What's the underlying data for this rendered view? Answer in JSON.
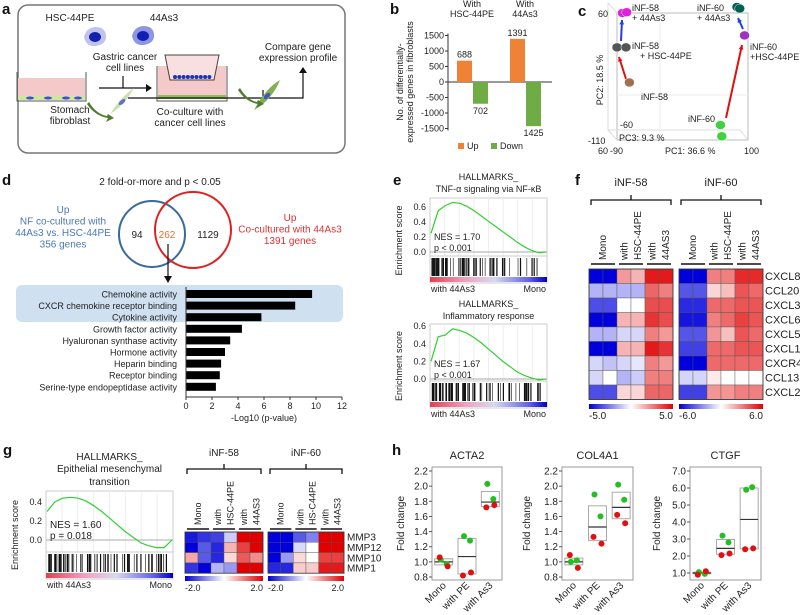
{
  "panel_labels": {
    "a": "a",
    "b": "b",
    "c": "c",
    "d": "d",
    "e": "e",
    "f": "f",
    "g": "g",
    "h": "h"
  },
  "panel_a": {
    "cell1": "HSC-44PE",
    "cell2": "44As3",
    "gastric_line1": "Gastric cancer",
    "gastric_line2": "cell lines",
    "stomach_line1": "Stomach",
    "stomach_line2": "fibroblast",
    "coculture_line1": "Co-culture with",
    "coculture_line2": "cancer cell lines",
    "compare_line1": "Compare gene",
    "compare_line2": "expression profile",
    "colors": {
      "medium": "#f4c9c9",
      "fibroblast": "#8fbf5a",
      "cancer": "#2030c0",
      "arrow": "#4f7d2a"
    }
  },
  "chart_data": [
    {
      "id": "b",
      "type": "bar",
      "groups": [
        [
          "With",
          "HSC-44PE"
        ],
        [
          "With",
          "44As3"
        ]
      ],
      "series": [
        {
          "name": "Up",
          "color": "#ee8236",
          "values": [
            688,
            1391
          ]
        },
        {
          "name": "Down",
          "color": "#6fac46",
          "values": [
            -702,
            -1425
          ]
        }
      ],
      "data_labels": [
        [
          "688",
          "702"
        ],
        [
          "1391",
          "1425"
        ]
      ],
      "ylabel_line1": "No. of differentially-",
      "ylabel_line2": "expressed genes in fibroblasts",
      "ylim": [
        -1500,
        1500
      ],
      "yticks": [
        "1500",
        "1000",
        "500",
        "0",
        "-500",
        "-1000",
        "-1500"
      ],
      "legend": [
        "Up",
        "Down"
      ],
      "legend_position": "bottom"
    },
    {
      "id": "c",
      "type": "scatter",
      "xlabel": "PC1: 36.6 %",
      "ylabel": "PC2: 18.5 %",
      "zlabel": "PC3: 9.3 %",
      "tick_labels": {
        "y_top": "60",
        "z_back": "-60",
        "y_bottom": "-110",
        "z_front": "60",
        "x_left": "-90",
        "x_right": "100"
      },
      "points": [
        {
          "group": "iNF-58 + 44As3",
          "pc1": -82,
          "pc2": 60,
          "color": "#e020e0"
        },
        {
          "group": "iNF-58 + 44As3",
          "pc1": -76,
          "pc2": 61,
          "color": "#e020e0"
        },
        {
          "group": "iNF-58 + HSC-44PE",
          "pc1": -90,
          "pc2": 14,
          "color": "#555555"
        },
        {
          "group": "iNF-58 + HSC-44PE",
          "pc1": -77,
          "pc2": 14,
          "color": "#555555"
        },
        {
          "group": "iNF-58",
          "pc1": -72,
          "pc2": -33,
          "color": "#a07050"
        },
        {
          "group": "iNF-60",
          "pc1": 60,
          "pc2": -90,
          "color": "#40d040"
        },
        {
          "group": "iNF-60",
          "pc1": 62,
          "pc2": -105,
          "color": "#40d040"
        },
        {
          "group": "iNF-60 +HSC-44PE",
          "pc1": 95,
          "pc2": 30,
          "color": "#a030c0"
        },
        {
          "group": "iNF-60 + 44As3",
          "pc1": 84,
          "pc2": 68,
          "color": "#006050"
        },
        {
          "group": "iNF-60 + 44As3",
          "pc1": 88,
          "pc2": 66,
          "color": "#006050"
        }
      ],
      "labels": {
        "g58as_1": "iNF-58",
        "g58as_2": "+ 44As3",
        "g58pe_1": "iNF-58",
        "g58pe_2": "+ HSC-44PE",
        "g58": "iNF-58",
        "g60as_1": "iNF-60",
        "g60as_2": "+ 44As3",
        "g60pe_1": "iNF-60",
        "g60pe_2": "+HSC-44PE",
        "g60": "iNF-60"
      }
    },
    {
      "id": "d",
      "type": "bar",
      "orientation": "horizontal",
      "title": "-Log10 (p-value)",
      "categories": [
        "Chemokine activity",
        "CXCR chemokine receptor binding",
        "Cytokine activity",
        "Growth factor activity",
        "Hyaluronan synthase activity",
        "Hormone activity",
        "Heparin binding",
        "Receptor binding",
        "Serine-type endopeptidase activity"
      ],
      "values": [
        9.7,
        8.4,
        5.8,
        4.3,
        3.4,
        3.0,
        2.7,
        2.6,
        2.3
      ],
      "highlighted": [
        0,
        1,
        2
      ],
      "xlim": [
        0,
        12
      ],
      "xticks": [
        "0",
        "2",
        "4",
        "6",
        "8",
        "10",
        "12"
      ],
      "xlabel": "-Log10 (p-value)"
    },
    {
      "id": "e1",
      "type": "line",
      "title_line1": "HALLMARKS_",
      "title_line2": "TNF-α signaling via NF-κB",
      "nes": "NES = 1.70",
      "p": "p < 0.001",
      "ylabel": "Enrichment score",
      "yticks": [
        "0.6",
        "0.4",
        "0.2",
        "0.0"
      ],
      "left_label": "with 44As3",
      "right_label": "Mono",
      "es_curve": [
        0.25,
        0.55,
        0.62,
        0.66,
        0.65,
        0.61,
        0.55,
        0.48,
        0.41,
        0.34,
        0.27,
        0.2,
        0.13,
        0.07,
        0.02,
        -0.01,
        0.0
      ]
    },
    {
      "id": "e2",
      "type": "line",
      "title_line1": "HALLMARKS_",
      "title_line2": "Inflammatory response",
      "nes": "NES = 1.67",
      "p": "p < 0.001",
      "ylabel": "Enrichment score",
      "yticks": [
        "0.6",
        "0.4",
        "0.2",
        "0.0"
      ],
      "left_label": "with 44As3",
      "right_label": "Mono",
      "es_curve": [
        0.2,
        0.48,
        0.5,
        0.57,
        0.55,
        0.52,
        0.47,
        0.41,
        0.34,
        0.27,
        0.2,
        0.14,
        0.08,
        0.04,
        0.01,
        -0.01,
        0.0
      ]
    },
    {
      "id": "f",
      "type": "heatmap",
      "groups": [
        {
          "name": "iNF-58",
          "scale_min": "-5.0",
          "scale_max": "5.0",
          "max": 5,
          "values": [
            [
              -5,
              -5,
              2,
              1.5,
              4.5,
              4.5
            ],
            [
              -1.5,
              -1.5,
              -1.5,
              -1.5,
              3,
              2.5
            ],
            [
              -3.5,
              -3.5,
              0,
              0,
              3.5,
              3.5
            ],
            [
              -5,
              -5,
              1.5,
              1.5,
              4,
              3.5
            ],
            [
              -1.5,
              -1.5,
              -0.8,
              -0.8,
              2.5,
              2
            ],
            [
              -5,
              -5,
              1.5,
              1.5,
              4.5,
              4
            ],
            [
              -0.8,
              -1.2,
              -0.8,
              -0.5,
              2.5,
              2
            ],
            [
              -0.8,
              0,
              -1.5,
              -1,
              2.5,
              2.5
            ],
            [
              -3.5,
              -3.5,
              0.8,
              0.8,
              3,
              3
            ]
          ]
        },
        {
          "name": "iNF-60",
          "scale_min": "-6.0",
          "scale_max": "6.0",
          "max": 6,
          "values": [
            [
              -6,
              -6,
              3,
              3,
              5,
              5
            ],
            [
              -4,
              -4,
              1,
              1.5,
              4,
              3.5
            ],
            [
              -5,
              -5,
              3.5,
              3.5,
              4,
              4
            ],
            [
              -5.5,
              -5.5,
              3,
              3.5,
              4.5,
              4
            ],
            [
              -4,
              -4,
              2.5,
              1.5,
              4,
              3.5
            ],
            [
              -4.5,
              -4.5,
              3.5,
              3.5,
              4,
              4
            ],
            [
              -6,
              -6,
              3.5,
              3.5,
              3.5,
              3.5
            ],
            [
              -1,
              -1,
              0.5,
              0,
              0,
              0
            ],
            [
              -4.5,
              -4.5,
              2.5,
              2.5,
              3,
              3
            ]
          ]
        }
      ],
      "conditions": [
        [
          "Mono"
        ],
        [
          "with",
          "HSC-44PE"
        ],
        [
          "with",
          "44AS3"
        ]
      ],
      "rows": [
        "CXCL8",
        "CCL20",
        "CXCL3",
        "CXCL6",
        "CXCL5",
        "CXCL1",
        "CXCR4",
        "CCL13",
        "CXCL2"
      ]
    },
    {
      "id": "g1",
      "type": "line",
      "title_line1": "HALLMARKS_",
      "title_line2": "Epithelial mesenchymal",
      "title_line3": "transition",
      "nes": "NES = 1.60",
      "p": "p = 0.018",
      "ylabel": "Enrichment score",
      "yticks": [
        "0.4",
        "0.2",
        "0.0"
      ],
      "left_label": "with 44As3",
      "right_label": "Mono",
      "es_curve": [
        0.3,
        0.4,
        0.44,
        0.45,
        0.44,
        0.41,
        0.36,
        0.3,
        0.23,
        0.16,
        0.09,
        0.03,
        -0.03,
        -0.06,
        -0.08,
        -0.08,
        0.0
      ]
    },
    {
      "id": "g2",
      "type": "heatmap",
      "groups": [
        {
          "name": "iNF-58",
          "scale_min": "-2.0",
          "scale_max": "2.0",
          "max": 2,
          "conditions": [
            [
              "Mono"
            ],
            [
              "with",
              "HSC-44PE"
            ],
            [
              "with",
              "44AS3"
            ]
          ],
          "values": [
            [
              -1.8,
              -1.6,
              -1.5,
              -0.4,
              2,
              2
            ],
            [
              -2,
              -1.3,
              -1.7,
              0.6,
              1.5,
              2
            ],
            [
              0.7,
              -1.3,
              -1.7,
              0.3,
              1.3,
              0.9
            ],
            [
              -1.6,
              -2,
              -0.6,
              -0.8,
              2,
              2
            ]
          ]
        },
        {
          "name": "iNF-60",
          "scale_min": "-2.0",
          "scale_max": "2.0",
          "max": 2,
          "conditions": [
            [
              "Mono"
            ],
            [
              "with",
              "HS-C44PE"
            ],
            [
              "with",
              "44AS3"
            ]
          ],
          "values": [
            [
              -2,
              -2,
              -1.3,
              -1,
              2,
              2
            ],
            [
              -2,
              -2,
              -0.3,
              0,
              2,
              2
            ],
            [
              -2,
              -0.8,
              0.3,
              0,
              1.5,
              1.5
            ],
            [
              -1.7,
              -1.7,
              0.4,
              0.4,
              1.8,
              1.8
            ]
          ]
        }
      ],
      "rows": [
        "MMP3",
        "MMP12",
        "MMP10",
        "MMP1"
      ]
    },
    {
      "id": "h",
      "type": "box",
      "categories": [
        "Mono",
        "with PE",
        "with As3"
      ],
      "ylabel": "Fold change",
      "plots": [
        {
          "title": "ACTA2",
          "ylim": [
            0.8,
            2.2
          ],
          "yticks": [
            "2.2",
            "2.0",
            "1.8",
            "1.6",
            "1.4",
            "1.2",
            "1.0",
            "0.8"
          ],
          "boxes": [
            [
              0.96,
              1.0,
              1.04
            ],
            [
              0.84,
              1.07,
              1.31
            ],
            [
              1.73,
              1.79,
              1.93
            ]
          ],
          "green": [
            [
              1.03,
              0.97
            ],
            [
              1.34,
              1.28
            ],
            [
              2.03,
              1.83
            ]
          ],
          "red": [
            [
              1.06,
              0.94
            ],
            [
              0.82,
              0.86
            ],
            [
              1.72,
              1.75
            ]
          ]
        },
        {
          "title": "COL4A1",
          "ylim": [
            0.8,
            2.2
          ],
          "yticks": [
            "2.2",
            "2.0",
            "1.8",
            "1.6",
            "1.4",
            "1.2",
            "1.0",
            "0.8"
          ],
          "boxes": [
            [
              0.96,
              1.0,
              1.05
            ],
            [
              1.28,
              1.46,
              1.74
            ],
            [
              1.57,
              1.72,
              1.92
            ]
          ],
          "green": [
            [
              1.0,
              1.02
            ],
            [
              1.89,
              1.6
            ],
            [
              2.02,
              1.82
            ]
          ],
          "red": [
            [
              1.09,
              0.92
            ],
            [
              1.33,
              1.24
            ],
            [
              1.62,
              1.51
            ]
          ]
        },
        {
          "title": "CTGF",
          "ylim": [
            0.8,
            7.0
          ],
          "yticks": [
            "7.0",
            "6.0",
            "5.0",
            "4.0",
            "3.0",
            "2.0",
            "1.0"
          ],
          "boxes": [
            [
              0.95,
              1.0,
              1.05
            ],
            [
              2.1,
              2.45,
              2.97
            ],
            [
              2.42,
              4.15,
              6.0
            ]
          ],
          "green": [
            [
              1.05,
              0.95
            ],
            [
              3.2,
              2.8
            ],
            [
              5.9,
              6.05
            ]
          ],
          "red": [
            [
              0.9,
              1.1
            ],
            [
              2.05,
              2.15
            ],
            [
              2.4,
              2.45
            ]
          ]
        }
      ]
    }
  ],
  "panel_d": {
    "title": "2 fold-or-more and p < 0.05",
    "left_set": [
      "Up",
      "NF co-cultured with",
      "44As3 vs. HSC-44PE",
      "356 genes"
    ],
    "right_set": [
      "Up",
      "Co-cultured with 44As3",
      "1391 genes"
    ],
    "venn": {
      "left_only": "94",
      "overlap": "262",
      "right_only": "1129"
    },
    "colors": {
      "left": "#3a6a9a",
      "right": "#e02020",
      "highlight": "#cfe0f0"
    }
  }
}
